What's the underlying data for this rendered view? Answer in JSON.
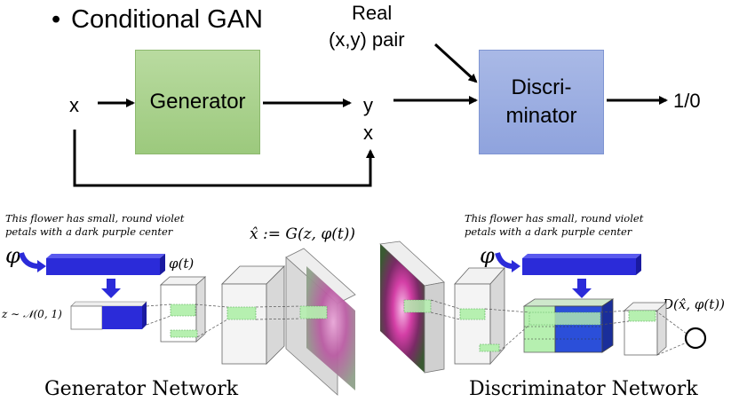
{
  "top": {
    "bullet": "•",
    "title": "Conditional GAN",
    "real_label_line1": "Real",
    "real_label_line2": "(x,y) pair",
    "input_x": "x",
    "generator_label": "Generator",
    "output_y": "y",
    "output_x": "x",
    "discriminator_line1": "Discri-",
    "discriminator_line2": "minator",
    "result": "1/0",
    "colors": {
      "generator": "#a9d18e",
      "discriminator": "#8fa3dd"
    }
  },
  "bottom": {
    "text_left_line1": "This flower has small, round violet",
    "text_left_line2": "petals with a dark purple center",
    "text_right_line1": "This flower has small, round violet",
    "text_right_line2": "petals with a dark purple center",
    "phi_left": "φ",
    "phi_t_left": "φ(t)",
    "z_dist": "z ∼ 𝒩(0, 1)",
    "xhat_formula": "x̂ := G(z, φ(t))",
    "phi_right": "φ",
    "d_formula": "D(x̂, φ(t))",
    "generator_caption": "Generator Network",
    "discriminator_caption": "Discriminator Network",
    "colors": {
      "embedding": "#2b2bd9",
      "feature": "#b6f0b0"
    }
  }
}
